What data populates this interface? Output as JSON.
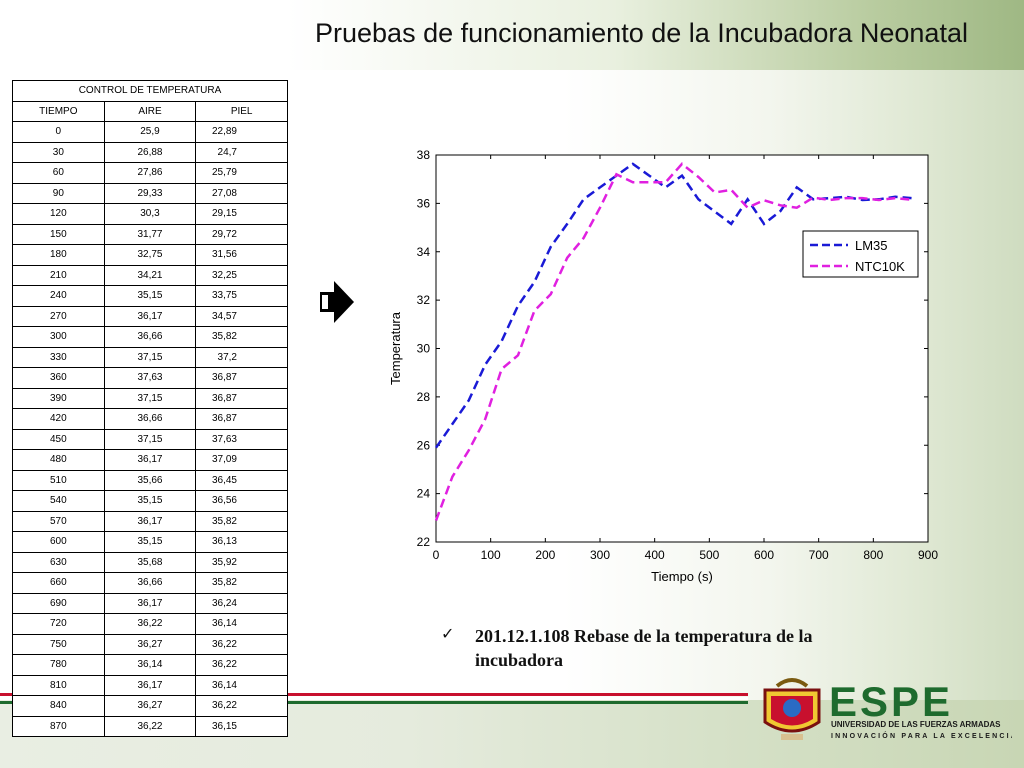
{
  "slide": {
    "title": "Pruebas de funcionamiento de la Incubadora Neonatal",
    "caption": "201.12.1.108 Rebase de la temperatura de la incubadora",
    "check_icon": "checkmark-icon",
    "arrow_icon": "right-arrow-icon"
  },
  "table": {
    "title": "CONTROL DE TEMPERATURA",
    "headers": [
      "TIEMPO",
      "AIRE",
      "PIEL"
    ],
    "rows": [
      [
        "0",
        "25,9",
        "22,89"
      ],
      [
        "30",
        "26,88",
        "24,7"
      ],
      [
        "60",
        "27,86",
        "25,79"
      ],
      [
        "90",
        "29,33",
        "27,08"
      ],
      [
        "120",
        "30,3",
        "29,15"
      ],
      [
        "150",
        "31,77",
        "29,72"
      ],
      [
        "180",
        "32,75",
        "31,56"
      ],
      [
        "210",
        "34,21",
        "32,25"
      ],
      [
        "240",
        "35,15",
        "33,75"
      ],
      [
        "270",
        "36,17",
        "34,57"
      ],
      [
        "300",
        "36,66",
        "35,82"
      ],
      [
        "330",
        "37,15",
        "37,2"
      ],
      [
        "360",
        "37,63",
        "36,87"
      ],
      [
        "390",
        "37,15",
        "36,87"
      ],
      [
        "420",
        "36,66",
        "36,87"
      ],
      [
        "450",
        "37,15",
        "37,63"
      ],
      [
        "480",
        "36,17",
        "37,09"
      ],
      [
        "510",
        "35,66",
        "36,45"
      ],
      [
        "540",
        "35,15",
        "36,56"
      ],
      [
        "570",
        "36,17",
        "35,82"
      ],
      [
        "600",
        "35,15",
        "36,13"
      ],
      [
        "630",
        "35,68",
        "35,92"
      ],
      [
        "660",
        "36,66",
        "35,82"
      ],
      [
        "690",
        "36,17",
        "36,24"
      ],
      [
        "720",
        "36,22",
        "36,14"
      ],
      [
        "750",
        "36,27",
        "36,22"
      ],
      [
        "780",
        "36,14",
        "36,22"
      ],
      [
        "810",
        "36,17",
        "36,14"
      ],
      [
        "840",
        "36,27",
        "36,22"
      ],
      [
        "870",
        "36,22",
        "36,15"
      ]
    ]
  },
  "logo": {
    "name": "ESPE",
    "subtitle": "UNIVERSIDAD DE LAS FUERZAS ARMADAS",
    "tagline": "INNOVACIÓN PARA LA EXCELENCIA",
    "color": "#1e6b2e"
  },
  "chart_data": {
    "type": "line",
    "xlabel": "Tiempo (s)",
    "ylabel": "Temperatura",
    "xlim": [
      0,
      900
    ],
    "ylim": [
      22,
      38
    ],
    "xticks": [
      0,
      100,
      200,
      300,
      400,
      500,
      600,
      700,
      800,
      900
    ],
    "yticks": [
      22,
      24,
      26,
      28,
      30,
      32,
      34,
      36,
      38
    ],
    "legend_position": "right",
    "x": [
      0,
      30,
      60,
      90,
      120,
      150,
      180,
      210,
      240,
      270,
      300,
      330,
      360,
      390,
      420,
      450,
      480,
      510,
      540,
      570,
      600,
      630,
      660,
      690,
      720,
      750,
      780,
      810,
      840,
      870
    ],
    "series": [
      {
        "name": "LM35",
        "color": "#1a1ad6",
        "dash": "dashed",
        "values": [
          25.9,
          26.88,
          27.86,
          29.33,
          30.3,
          31.77,
          32.75,
          34.21,
          35.15,
          36.17,
          36.66,
          37.15,
          37.63,
          37.15,
          36.66,
          37.15,
          36.17,
          35.66,
          35.15,
          36.17,
          35.15,
          35.68,
          36.66,
          36.17,
          36.22,
          36.27,
          36.14,
          36.17,
          36.27,
          36.22
        ]
      },
      {
        "name": "NTC10K",
        "color": "#e020e0",
        "dash": "dashed",
        "values": [
          22.89,
          24.7,
          25.79,
          27.08,
          29.15,
          29.72,
          31.56,
          32.25,
          33.75,
          34.57,
          35.82,
          37.2,
          36.87,
          36.87,
          36.87,
          37.63,
          37.09,
          36.45,
          36.56,
          35.82,
          36.13,
          35.92,
          35.82,
          36.24,
          36.14,
          36.22,
          36.22,
          36.14,
          36.22,
          36.15
        ]
      }
    ]
  }
}
